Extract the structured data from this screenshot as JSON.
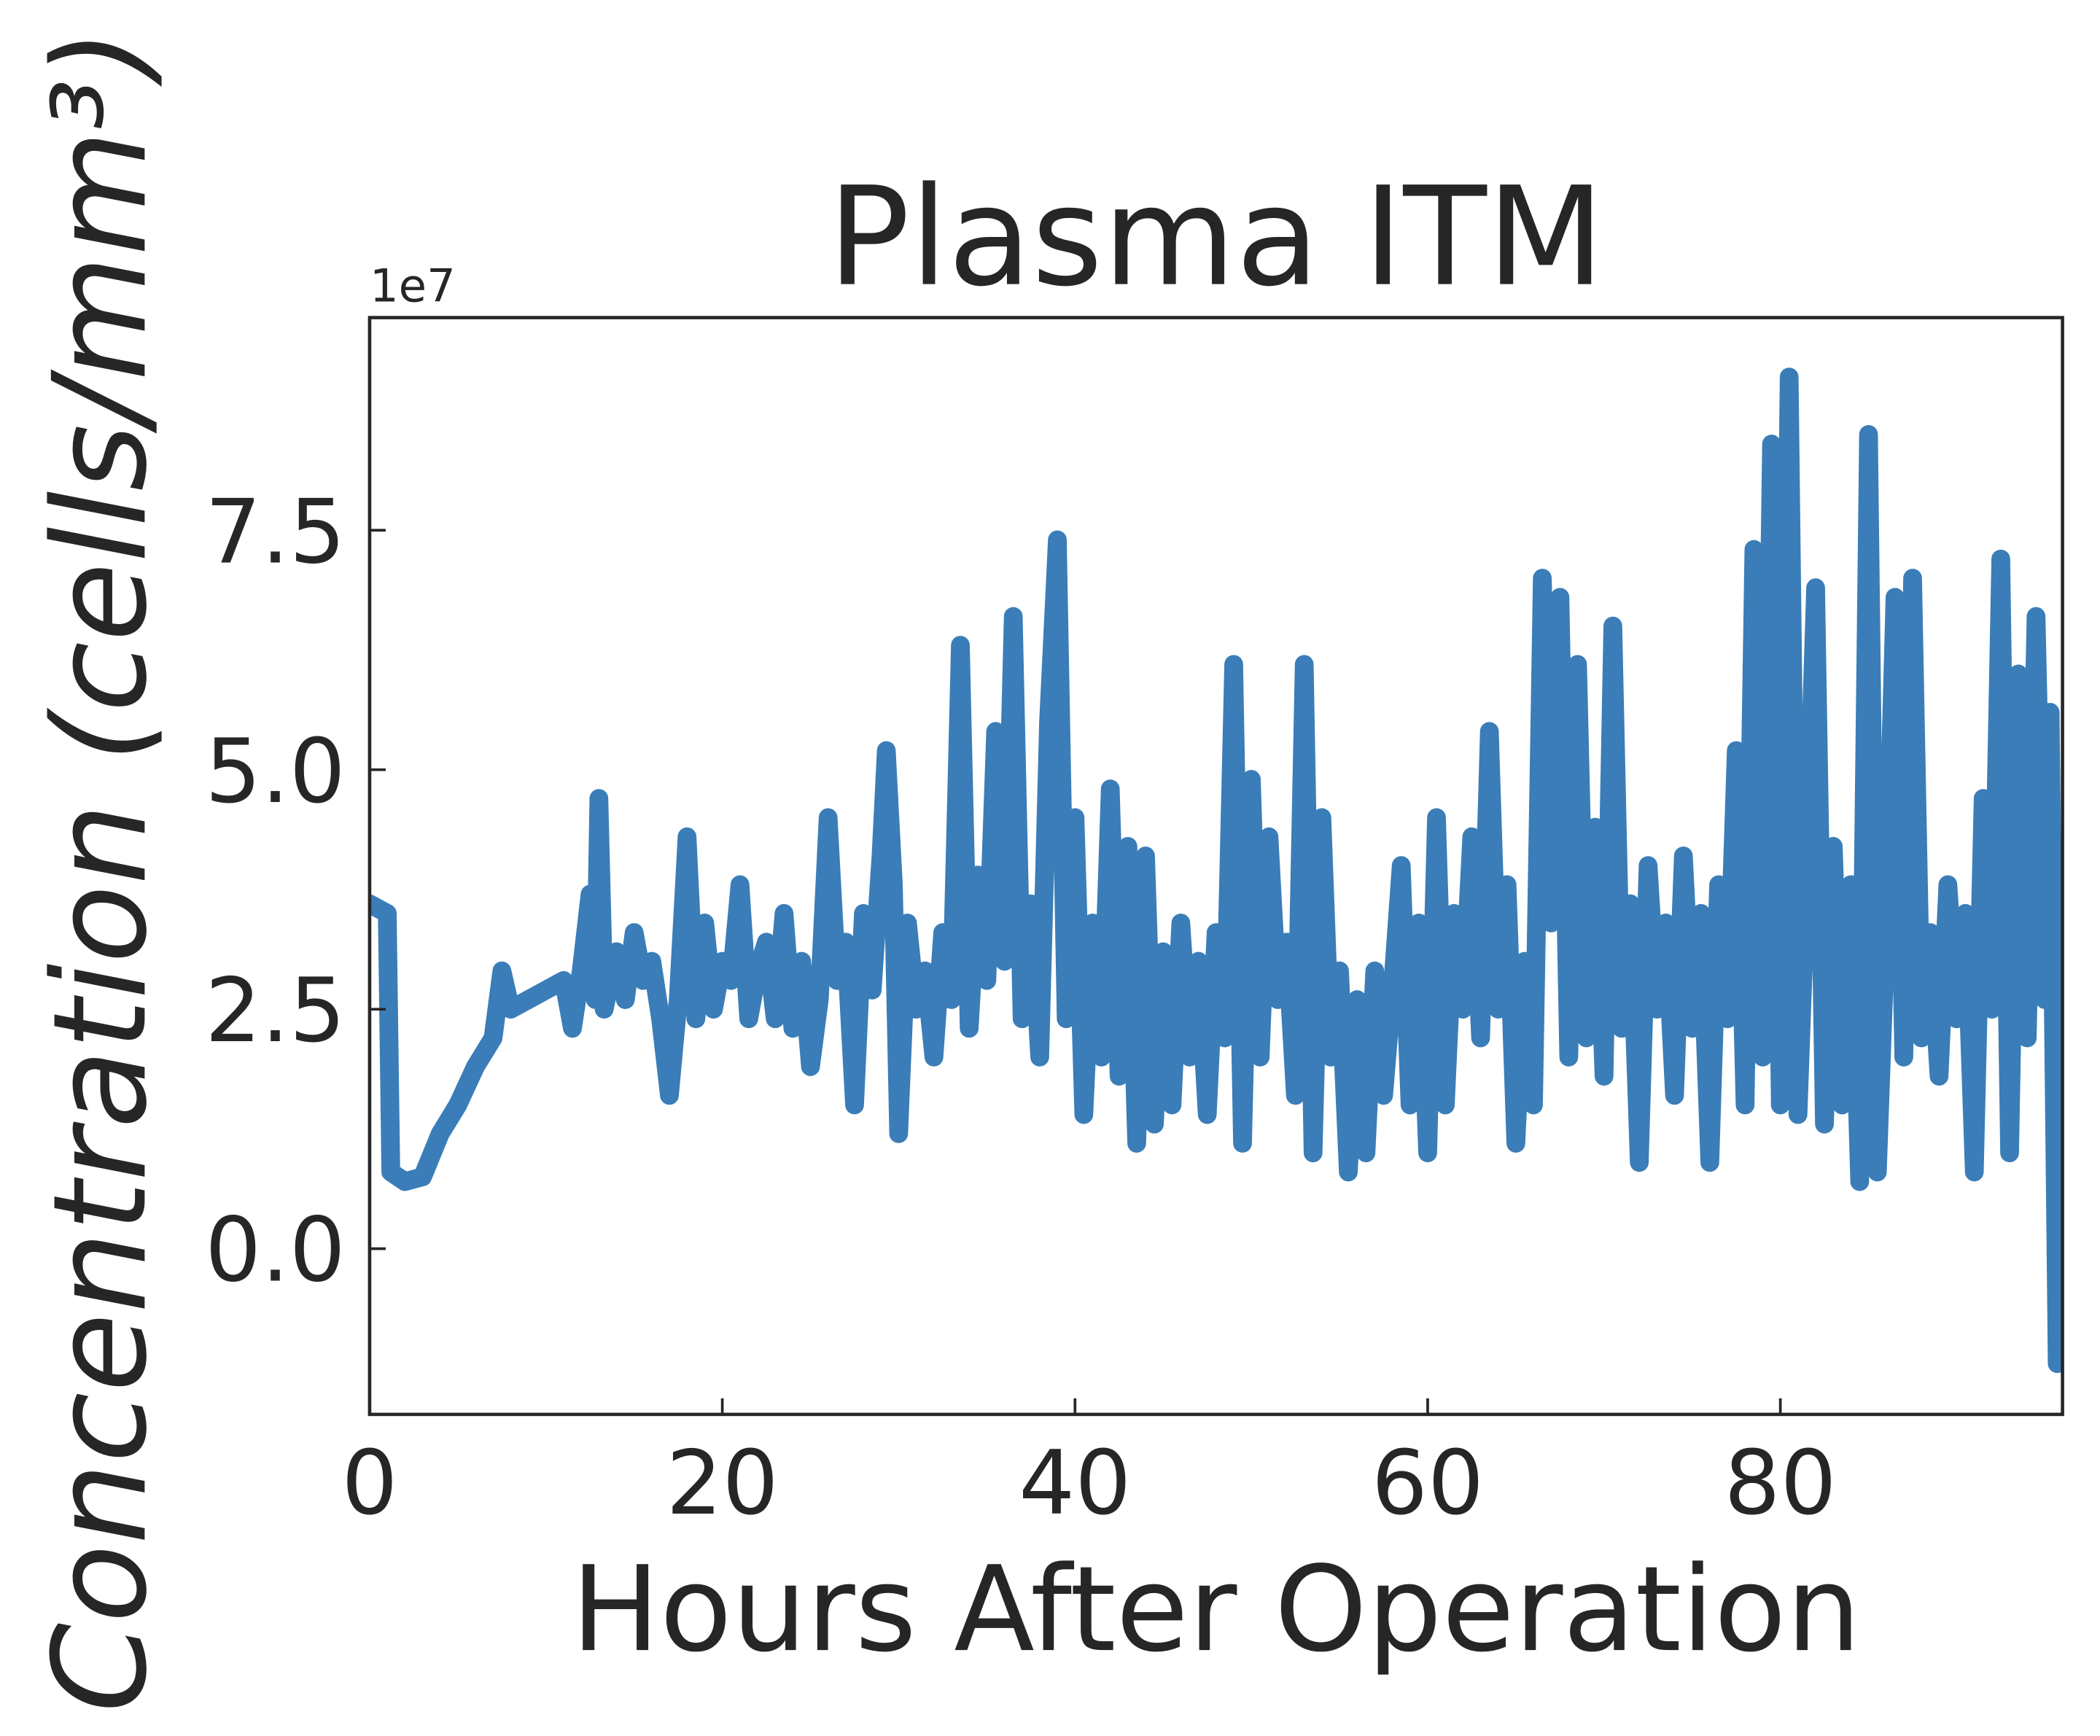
{
  "chart_data": {
    "type": "line",
    "title": "Plasma ITM",
    "x_label": "Hours After Operation",
    "y_label": "Concentration (cells/mm³)",
    "y_offset_label": "1e7",
    "color": "#3a7db8",
    "x": [
      0,
      1,
      1.2,
      2,
      3,
      4,
      5,
      6,
      7,
      7.5,
      8,
      9,
      10,
      11,
      11.5,
      12,
      12.5,
      12.8,
      13,
      13.3,
      14,
      14.5,
      15,
      15.5,
      16,
      16.5,
      17,
      17.5,
      18,
      18.5,
      19,
      19.5,
      20,
      20.5,
      21,
      21.5,
      22,
      22.5,
      23,
      23.5,
      24,
      24.5,
      25,
      25.5,
      26,
      26.5,
      27,
      27.5,
      28,
      28.5,
      29,
      29.3,
      29.7,
      30,
      30.5,
      31,
      31.5,
      32,
      32.5,
      33,
      33.5,
      34,
      34.5,
      35,
      35.5,
      36,
      36.5,
      37,
      37.5,
      38,
      38.5,
      39,
      39.5,
      40,
      40.5,
      41,
      41.5,
      42,
      42.5,
      43,
      43.5,
      44,
      44.5,
      45,
      45.5,
      46,
      46.5,
      47,
      47.5,
      48,
      48.5,
      49,
      49.5,
      50,
      50.5,
      51,
      51.5,
      52,
      52.5,
      53,
      53.5,
      54,
      54.5,
      55,
      55.5,
      56,
      56.5,
      57,
      57.5,
      58,
      58.5,
      59,
      59.5,
      60,
      60.5,
      61,
      61.5,
      62,
      62.5,
      63,
      63.5,
      64,
      64.5,
      65,
      65.5,
      66,
      66.5,
      67,
      67.5,
      68,
      68.5,
      69,
      69.5,
      70,
      70.5,
      71,
      71.5,
      72,
      72.5,
      73,
      73.5,
      74,
      74.5,
      75,
      75.5,
      76,
      76.5,
      77,
      77.5,
      78,
      78.5,
      79,
      79.5,
      80,
      80.5,
      81,
      81.5,
      82,
      82.5,
      83,
      83.5,
      84,
      84.5,
      85,
      85.5,
      86,
      86.5,
      87,
      87.5,
      88,
      88.5,
      89,
      89.5,
      90,
      90.5,
      91,
      91.5,
      92,
      92.5,
      93,
      93.5,
      94,
      94.5,
      95,
      95.3,
      95.7,
      96
    ],
    "values": [
      3.6,
      3.5,
      0.8,
      0.7,
      0.75,
      1.2,
      1.5,
      1.9,
      2.2,
      2.9,
      2.5,
      2.6,
      2.7,
      2.8,
      2.3,
      2.9,
      3.7,
      2.6,
      4.7,
      2.5,
      3.1,
      2.6,
      3.3,
      2.8,
      3.0,
      2.4,
      1.6,
      2.6,
      4.3,
      2.4,
      3.4,
      2.5,
      3.0,
      2.8,
      3.8,
      2.4,
      2.9,
      3.2,
      2.4,
      3.5,
      2.3,
      3.0,
      1.9,
      2.6,
      4.5,
      2.8,
      3.2,
      1.5,
      3.5,
      2.7,
      4.1,
      5.2,
      3.8,
      1.2,
      3.4,
      2.5,
      2.9,
      2.0,
      3.3,
      2.6,
      6.3,
      2.3,
      3.9,
      2.8,
      5.4,
      3.0,
      6.6,
      2.4,
      3.6,
      2.0,
      5.5,
      7.4,
      2.4,
      4.5,
      1.4,
      3.4,
      2.0,
      4.8,
      1.8,
      4.2,
      1.1,
      4.1,
      1.3,
      3.1,
      1.5,
      3.4,
      2.0,
      3.0,
      1.4,
      3.3,
      2.2,
      6.1,
      1.1,
      4.9,
      2.0,
      4.3,
      2.6,
      3.2,
      1.6,
      6.1,
      1.0,
      4.5,
      2.0,
      2.9,
      0.8,
      2.6,
      1.0,
      2.9,
      1.6,
      2.7,
      4.0,
      1.5,
      3.4,
      1.0,
      4.5,
      1.5,
      3.5,
      2.5,
      4.3,
      2.2,
      5.4,
      2.5,
      3.8,
      1.1,
      3.0,
      1.5,
      7.0,
      3.4,
      6.8,
      2.0,
      6.1,
      2.2,
      4.4,
      1.8,
      6.5,
      2.3,
      3.6,
      0.9,
      4.0,
      2.5,
      3.4,
      1.6,
      4.1,
      2.3,
      3.5,
      0.9,
      3.8,
      2.4,
      5.2,
      1.5,
      7.3,
      2.0,
      8.4,
      1.5,
      9.1,
      1.4,
      4.0,
      6.9,
      1.3,
      4.2,
      1.5,
      3.8,
      0.7,
      8.5,
      0.8,
      3.4,
      6.8,
      2.0,
      7.0,
      2.2,
      3.3,
      1.8,
      3.8,
      2.4,
      3.5,
      0.8,
      4.7,
      2.5,
      7.2,
      1.0,
      6.0,
      2.2,
      6.6,
      2.6,
      5.6,
      -1.2,
      4.2
    ],
    "xlim": [
      0,
      96
    ],
    "xticks": [
      0,
      20,
      40,
      60,
      80
    ],
    "ylim": [
      -1.73,
      9.72
    ],
    "yticks": [
      {
        "value": 0,
        "label": "0.0"
      },
      2.5,
      {
        "value": 5,
        "label": "5.0"
      },
      7.5
    ]
  }
}
